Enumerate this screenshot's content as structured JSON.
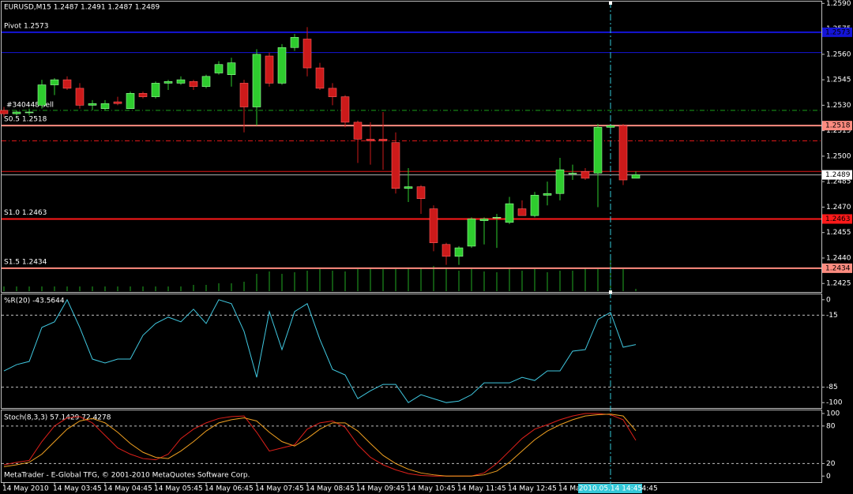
{
  "footer": "MetaTrader - E-Global TFG, © 2001-2010 MetaQuotes Software Corp.",
  "chart_data": [
    {
      "type": "candlestick",
      "title": "EURUSD,M15  1.2487 1.2491 1.2487 1.2489",
      "up_color": "#2ecc2e",
      "down_color": "#cc1a1a",
      "volume_color": "#22aa22",
      "open": [
        1.2527,
        1.2525,
        1.2526,
        1.253,
        1.2542,
        1.2545,
        1.254,
        1.253,
        1.2528,
        1.2532,
        1.2528,
        1.2537,
        1.2535,
        1.2543,
        1.2543,
        1.2544,
        1.2541,
        1.2549,
        1.2548,
        1.2543,
        1.2529,
        1.2559,
        1.2543,
        1.2564,
        1.2569,
        1.2552,
        1.254,
        1.2535,
        1.252,
        1.251,
        1.251,
        1.2508,
        1.2481,
        1.2482,
        1.2469,
        1.2448,
        1.2441,
        1.2447,
        1.2462,
        1.2464,
        1.2461,
        1.2469,
        1.2465,
        1.2477,
        1.2478,
        1.249,
        1.2491,
        1.249,
        1.2517,
        1.2518,
        1.2487
      ],
      "high": [
        1.2529,
        1.2527,
        1.2528,
        1.2545,
        1.2546,
        1.2547,
        1.2543,
        1.2533,
        1.2533,
        1.2535,
        1.2538,
        1.2538,
        1.2544,
        1.2545,
        1.2547,
        1.2545,
        1.2548,
        1.2556,
        1.2558,
        1.2545,
        1.2563,
        1.2561,
        1.2566,
        1.2572,
        1.2576,
        1.2555,
        1.2543,
        1.2536,
        1.2521,
        1.252,
        1.2526,
        1.2514,
        1.2493,
        1.2483,
        1.2471,
        1.2449,
        1.2447,
        1.2464,
        1.2464,
        1.2466,
        1.2476,
        1.2474,
        1.2479,
        1.2485,
        1.2499,
        1.2495,
        1.2493,
        1.2519,
        1.2519,
        1.2519,
        1.2491
      ],
      "low": [
        1.2523,
        1.2524,
        1.2524,
        1.2528,
        1.2536,
        1.2539,
        1.2528,
        1.2527,
        1.2527,
        1.253,
        1.2528,
        1.2534,
        1.2534,
        1.2539,
        1.2542,
        1.2539,
        1.254,
        1.2548,
        1.2541,
        1.2514,
        1.2518,
        1.2541,
        1.2542,
        1.2562,
        1.2547,
        1.2539,
        1.253,
        1.2517,
        1.2496,
        1.2495,
        1.2492,
        1.2478,
        1.2473,
        1.2466,
        1.2444,
        1.2436,
        1.2436,
        1.2446,
        1.2448,
        1.2446,
        1.246,
        1.2466,
        1.2464,
        1.2471,
        1.2474,
        1.2486,
        1.2486,
        1.247,
        1.2516,
        1.2483,
        1.2487
      ],
      "close": [
        1.2525,
        1.2526,
        1.2526,
        1.2542,
        1.2545,
        1.254,
        1.253,
        1.2531,
        1.2531,
        1.2531,
        1.2537,
        1.2535,
        1.2543,
        1.2544,
        1.2545,
        1.2541,
        1.2547,
        1.2554,
        1.2555,
        1.2529,
        1.256,
        1.2543,
        1.2564,
        1.257,
        1.2552,
        1.254,
        1.2535,
        1.252,
        1.251,
        1.2509,
        1.2509,
        1.2481,
        1.2482,
        1.2475,
        1.2449,
        1.2441,
        1.2446,
        1.2463,
        1.2463,
        1.2464,
        1.2472,
        1.2465,
        1.2477,
        1.2478,
        1.2492,
        1.249,
        1.2487,
        1.2517,
        1.2518,
        1.2486,
        1.2489
      ],
      "volumes": [
        6,
        6,
        6,
        6,
        6,
        6,
        6,
        6,
        6,
        6,
        6,
        6,
        6,
        6,
        6,
        8,
        8,
        10,
        10,
        12,
        22,
        25,
        22,
        24,
        26,
        28,
        26,
        25,
        28,
        30,
        28,
        28,
        30,
        30,
        32,
        30,
        26,
        28,
        25,
        24,
        28,
        26,
        28,
        24,
        26,
        26,
        30,
        28,
        45,
        28,
        3
      ],
      "ylim": [
        1.242,
        1.2592
      ],
      "yticks": [
        {
          "value": 1.259,
          "label": "1.2590"
        },
        1.2575,
        {
          "value": 1.256,
          "label": "1.2560"
        },
        1.2545,
        {
          "value": 1.253,
          "label": "1.2530"
        },
        1.2515,
        {
          "value": 1.25,
          "label": "1.2500"
        },
        1.2485,
        {
          "value": 1.247,
          "label": "1.2470"
        },
        1.2455,
        {
          "value": 1.244,
          "label": "1.2440"
        },
        1.2425
      ],
      "xticks": [
        {
          "value": 0,
          "label": "14 May 2010"
        },
        {
          "value": 4,
          "label": "14 May 03:45"
        },
        {
          "value": 8,
          "label": "14 May 04:45"
        },
        {
          "value": 12,
          "label": "14 May 05:45"
        },
        {
          "value": 16,
          "label": "14 May 06:45"
        },
        {
          "value": 20,
          "label": "14 May 07:45"
        },
        {
          "value": 24,
          "label": "14 May 08:45"
        },
        {
          "value": 28,
          "label": "14 May 09:45"
        },
        {
          "value": 32,
          "label": "14 May 10:45"
        },
        {
          "value": 36,
          "label": "14 May 11:45"
        },
        {
          "value": 40,
          "label": "14 May 12:45"
        },
        {
          "value": 44,
          "label": "14 May 13:45"
        },
        {
          "value": 48,
          "label": "14 May 14:45"
        }
      ],
      "levels": [
        {
          "label": "Pivot 1.2573",
          "value": 1.2573,
          "color": "#1414d8"
        },
        {
          "label": "S0.5 1.2518",
          "value": 1.2518,
          "color": "#ff8c80"
        },
        {
          "label": "S1.0 1.2463",
          "value": 1.2463,
          "color": "#ff1a1a"
        },
        {
          "label": "S1.5 1.2434",
          "value": 1.2434,
          "color": "#ff8c80"
        }
      ],
      "order": {
        "label": "#340448 sell",
        "value": 1.2527,
        "color": "#1aa01a"
      },
      "lines": [
        {
          "value": 1.2561,
          "color": "#1414d8",
          "dashed": false
        },
        {
          "value": 1.2509,
          "color": "#e01818",
          "dashed": true
        },
        {
          "value": 1.2491,
          "color": "#e01818",
          "dashed": false
        }
      ],
      "bid": 1.2489,
      "crosshair": {
        "index": 48,
        "label": "2010.05.14 14:45",
        "color": "#33c8d8"
      }
    },
    {
      "type": "line",
      "title": "%R(20) -43.5644",
      "color": "#40c8e0",
      "values": [
        -69.2,
        -63.1,
        -60,
        -26.9,
        -21.5,
        0,
        -26.9,
        -57.7,
        -61.5,
        -57.7,
        -57.7,
        -34.6,
        -23.1,
        -16.9,
        -21.5,
        -9.2,
        -23.1,
        0,
        -3.8,
        -30.8,
        -75.4,
        -11.5,
        -48.5,
        -11.5,
        -3.8,
        -38.5,
        -67.7,
        -73.1,
        -96.2,
        -88.5,
        -82.3,
        -82.3,
        -100,
        -92.3,
        -96.2,
        -100,
        -98.5,
        -92.3,
        -80.8,
        -80.8,
        -80.8,
        -75.4,
        -78.5,
        -69.2,
        -69.2,
        -50,
        -48.5,
        -19.2,
        -12.3,
        -46.2,
        -43.5644
      ],
      "ylim": [
        -106,
        6
      ],
      "yticks": [
        0,
        -15,
        -85,
        -100
      ],
      "levels": [
        -15,
        -85
      ]
    },
    {
      "type": "line",
      "title": "Stoch(8,3,3) 57.1429 72.4278",
      "series": [
        {
          "color": "#e0201a",
          "values": [
            18,
            22,
            25,
            55,
            80,
            93,
            95,
            85,
            65,
            45,
            35,
            28,
            26,
            35,
            60,
            75,
            85,
            92,
            95,
            96,
            70,
            40,
            45,
            50,
            75,
            85,
            88,
            78,
            50,
            30,
            18,
            10,
            4,
            1,
            0,
            0,
            0,
            0,
            5,
            20,
            40,
            60,
            75,
            82,
            90,
            96,
            100,
            100,
            98,
            90,
            57.1429
          ]
        },
        {
          "color": "#f0a020",
          "values": [
            15,
            18,
            22,
            35,
            55,
            75,
            88,
            92,
            85,
            70,
            52,
            38,
            30,
            28,
            40,
            55,
            72,
            85,
            90,
            93,
            88,
            70,
            55,
            48,
            60,
            75,
            85,
            85,
            72,
            52,
            33,
            20,
            11,
            5,
            2,
            0,
            0,
            0,
            2,
            8,
            22,
            40,
            58,
            72,
            82,
            90,
            96,
            98,
            99,
            96,
            72.4278
          ]
        }
      ],
      "ylim": [
        -11,
        105
      ],
      "yticks": [
        100,
        80,
        20,
        0
      ],
      "levels": [
        80,
        20
      ]
    }
  ]
}
